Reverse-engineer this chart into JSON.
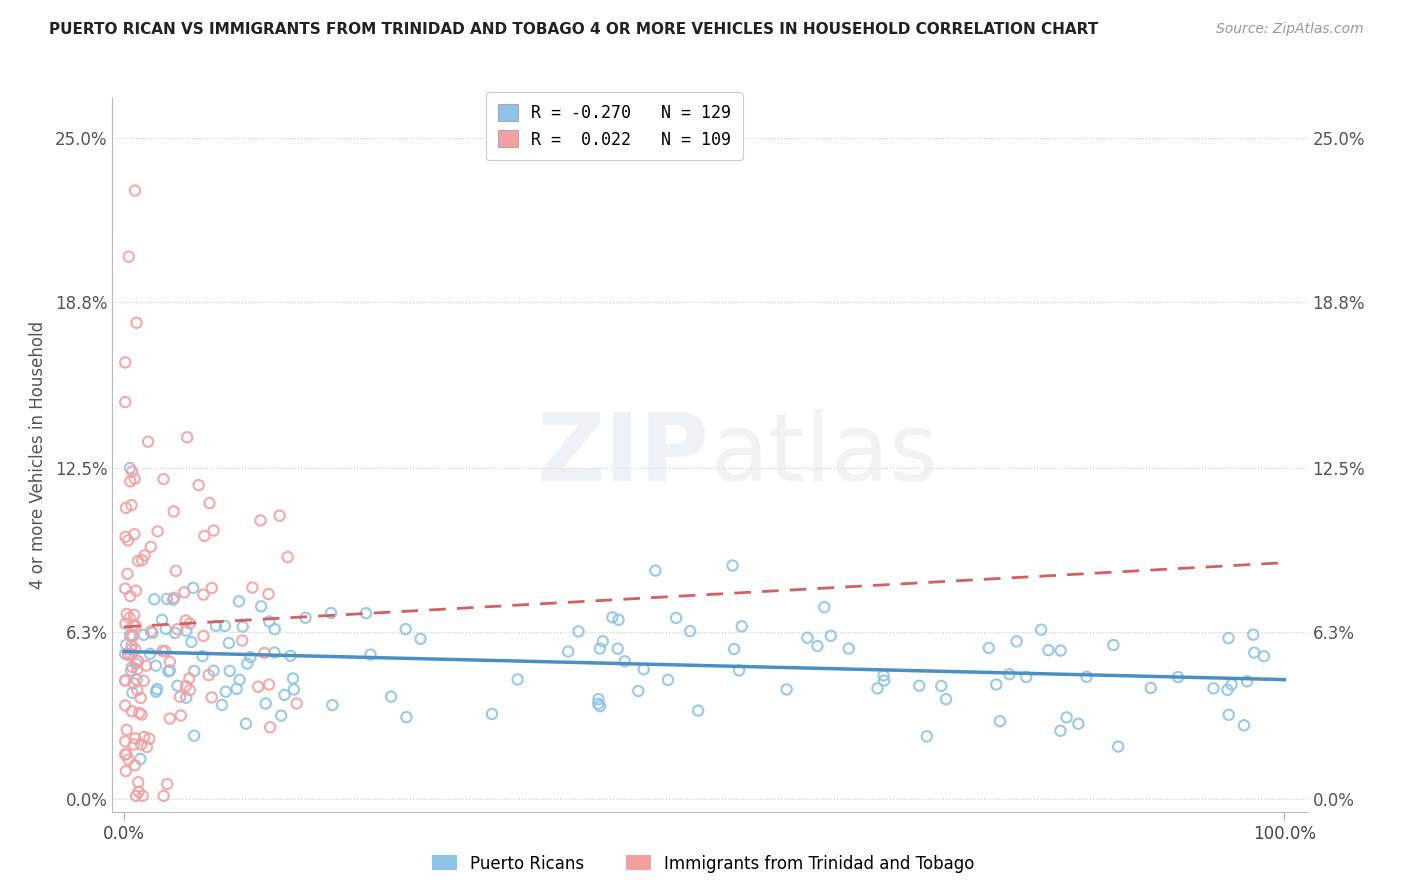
{
  "title": "PUERTO RICAN VS IMMIGRANTS FROM TRINIDAD AND TOBAGO 4 OR MORE VEHICLES IN HOUSEHOLD CORRELATION CHART",
  "source": "Source: ZipAtlas.com",
  "ylabel_label": "4 or more Vehicles in Household",
  "ytick_values": [
    0.0,
    6.3,
    12.5,
    18.8,
    25.0
  ],
  "ytick_labels": [
    "0.0%",
    "6.3%",
    "12.5%",
    "18.8%",
    "25.0%"
  ],
  "legend_label_blue": "Puerto Ricans",
  "legend_label_pink": "Immigrants from Trinidad and Tobago",
  "blue_color": "#8ec4e8",
  "pink_color": "#f4a0a0",
  "trend_blue_color": "#4a90c4",
  "trend_pink_color": "#d46060",
  "watermark_zip": "ZIP",
  "watermark_atlas": "atlas",
  "blue_R": -0.27,
  "blue_N": 129,
  "pink_R": 0.022,
  "pink_N": 109,
  "xlim": [
    0,
    100
  ],
  "ylim": [
    0,
    25.0
  ],
  "xmin_display": 0.0,
  "xmax_display": 100.0
}
